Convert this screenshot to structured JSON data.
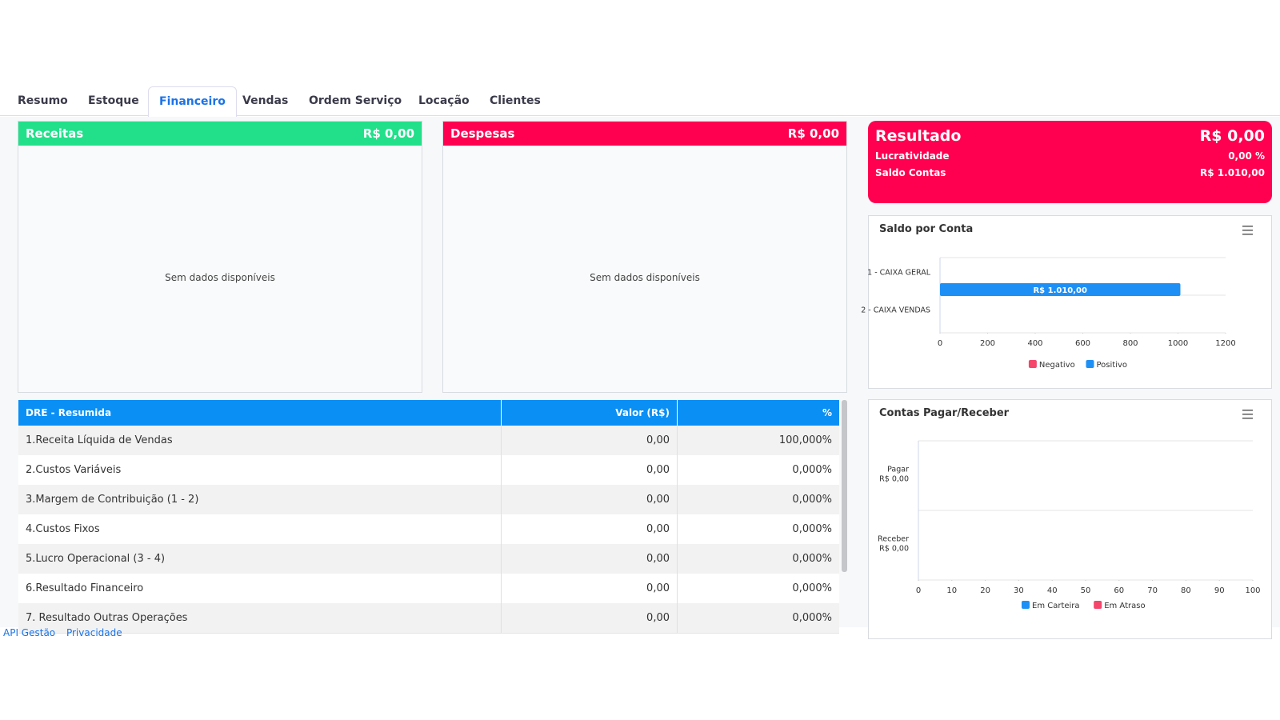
{
  "tabs": [
    "Resumo",
    "Estoque",
    "Financeiro",
    "Vendas",
    "Ordem Serviço",
    "Locação",
    "Clientes"
  ],
  "receitas": {
    "title": "Receitas",
    "total": "R$ 0,00",
    "empty": "Sem dados disponíveis"
  },
  "despesas": {
    "title": "Despesas",
    "total": "R$ 0,00",
    "empty": "Sem dados disponíveis"
  },
  "resultado": {
    "title": "Resultado",
    "total": "R$ 0,00",
    "rows": [
      [
        "Lucratividade",
        "0,00 %"
      ],
      [
        "Saldo Contas",
        "R$ 1.010,00"
      ]
    ]
  },
  "saldo_chart": {
    "type": "bar",
    "title": "Saldo por Conta",
    "categories": [
      "1 - CAIXA GERAL",
      "2 - CAIXA VENDAS"
    ],
    "series": [
      {
        "name": "Negativo",
        "color": "#f5456b",
        "values": [
          null,
          null
        ]
      },
      {
        "name": "Positivo",
        "color": "#1e90f5",
        "values": [
          1010,
          null
        ],
        "value_labels": [
          "R$ 1.010,00",
          null
        ]
      }
    ],
    "xlim": [
      0,
      1200
    ],
    "xticks": [
      0,
      200,
      400,
      600,
      800,
      1000,
      1200
    ]
  },
  "contas_chart": {
    "type": "bar",
    "title": "Contas Pagar/Receber",
    "categories": [
      "Pagar",
      "Receber"
    ],
    "category_totals": [
      "R$ 0,00",
      "R$ 0,00"
    ],
    "series": [
      {
        "name": "Em Carteira",
        "color": "#1e90f5",
        "values": [
          0,
          0
        ]
      },
      {
        "name": "Em Atraso",
        "color": "#f5456b",
        "values": [
          0,
          0
        ]
      }
    ],
    "xlim": [
      0,
      100
    ],
    "xticks": [
      0,
      10,
      20,
      30,
      40,
      50,
      60,
      70,
      80,
      90,
      100
    ]
  },
  "dre": {
    "header": [
      "DRE - Resumida",
      "Valor (R$)",
      "%"
    ],
    "rows": [
      [
        "1.Receita Líquida de Vendas",
        "0,00",
        "100,000%"
      ],
      [
        "2.Custos Variáveis",
        "0,00",
        "0,000%"
      ],
      [
        "3.Margem de Contribuição (1 - 2)",
        "0,00",
        "0,000%"
      ],
      [
        "4.Custos Fixos",
        "0,00",
        "0,000%"
      ],
      [
        "5.Lucro Operacional (3 - 4)",
        "0,00",
        "0,000%"
      ],
      [
        "6.Resultado Financeiro",
        "0,00",
        "0,000%"
      ],
      [
        "7. Resultado Outras Operações",
        "0,00",
        "0,000%"
      ]
    ]
  },
  "footer": [
    "API Gestão",
    "Privacidade"
  ]
}
